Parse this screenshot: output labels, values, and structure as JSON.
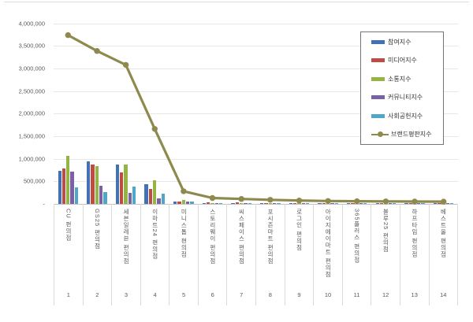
{
  "chart_data": {
    "type": "bar",
    "title": "",
    "xlabel": "",
    "ylabel": "",
    "ylim": [
      0,
      4000000
    ],
    "y_tick_step": 500000,
    "y_tick_labels": [
      "-",
      "500,000",
      "1,000,000",
      "1,500,000",
      "2,000,000",
      "2,500,000",
      "3,000,000",
      "3,500,000",
      "4,000,000"
    ],
    "grid": true,
    "legend_position": "inside-top-right",
    "categories": [
      "CU 편의점",
      "GS25 편의점",
      "세븐일레븐 편의점",
      "이마트24 편의점",
      "미니스톱 편의점",
      "스토리웨이 편의점",
      "씨스페이스 편의점",
      "포시즌마트 편의점",
      "로그인 편의점",
      "아이지에이마트 편의점",
      "365플러스 편의점",
      "블루25 편의점",
      "하프타임 편의점",
      "베스트올 편의점"
    ],
    "category_numbers": [
      "1",
      "2",
      "3",
      "4",
      "5",
      "6",
      "7",
      "8",
      "9",
      "10",
      "11",
      "12",
      "13",
      "14"
    ],
    "series": [
      {
        "name": "참여지수",
        "kind": "bar",
        "color": "#4471B5",
        "values": [
          740000,
          940000,
          880000,
          430000,
          45000,
          25000,
          20000,
          17000,
          12000,
          10000,
          9000,
          8000,
          8000,
          7000
        ]
      },
      {
        "name": "미디어지수",
        "kind": "bar",
        "color": "#BE4B44",
        "values": [
          780000,
          880000,
          690000,
          330000,
          60000,
          30000,
          28000,
          25000,
          18000,
          15000,
          13000,
          12000,
          10000,
          9000
        ]
      },
      {
        "name": "소통지수",
        "kind": "bar",
        "color": "#94B543",
        "values": [
          1070000,
          830000,
          870000,
          520000,
          80000,
          25000,
          20000,
          16000,
          13000,
          12000,
          10000,
          9000,
          8000,
          7000
        ]
      },
      {
        "name": "커뮤니티지수",
        "kind": "bar",
        "color": "#7B60A5",
        "values": [
          720000,
          400000,
          240000,
          130000,
          45000,
          20000,
          15000,
          12000,
          10000,
          8000,
          7000,
          7000,
          6000,
          5000
        ]
      },
      {
        "name": "사회공헌지수",
        "kind": "bar",
        "color": "#4EA6C9",
        "values": [
          370000,
          270000,
          390000,
          230000,
          55000,
          25000,
          22000,
          18000,
          17000,
          20000,
          16000,
          14000,
          13000,
          15000
        ]
      },
      {
        "name": "브랜드평판지수",
        "kind": "line",
        "color": "#8E8A4F",
        "values": [
          3740000,
          3390000,
          3080000,
          1660000,
          280000,
          130000,
          110000,
          90000,
          75000,
          65000,
          60000,
          55000,
          52000,
          50000
        ]
      }
    ]
  },
  "style": {
    "gridline_color": "#e7e7e7",
    "axis_line_color": "#c3c3c3",
    "label_color": "#595959",
    "legend_border_color": "#757575"
  }
}
